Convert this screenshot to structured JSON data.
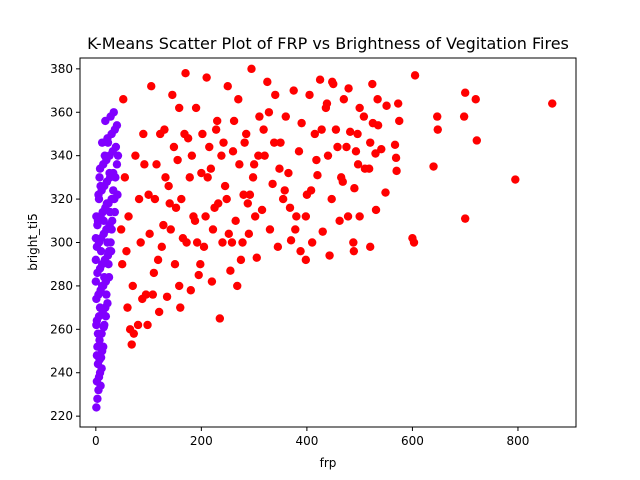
{
  "chart_data": {
    "type": "scatter",
    "title": "K-Means Scatter Plot of FRP vs Brightness of Vegitation Fires",
    "xlabel": "frp",
    "ylabel": "bright_ti5",
    "xlim": [
      -30,
      910
    ],
    "ylim": [
      215,
      385
    ],
    "x_ticks": [
      0,
      200,
      400,
      600,
      800
    ],
    "y_ticks": [
      220,
      240,
      260,
      280,
      300,
      320,
      340,
      360,
      380
    ],
    "grid": false,
    "legend": "none",
    "series": [
      {
        "color": "#8000ff",
        "points": [
          [
            1,
            224
          ],
          [
            3,
            228
          ],
          [
            5,
            232
          ],
          [
            2,
            236
          ],
          [
            6,
            238
          ],
          [
            8,
            240
          ],
          [
            4,
            244
          ],
          [
            10,
            247
          ],
          [
            12,
            250
          ],
          [
            3,
            252
          ],
          [
            7,
            255
          ],
          [
            11,
            258
          ],
          [
            15,
            261
          ],
          [
            2,
            264
          ],
          [
            6,
            266
          ],
          [
            13,
            268
          ],
          [
            18,
            270
          ],
          [
            22,
            272
          ],
          [
            1,
            274
          ],
          [
            5,
            276
          ],
          [
            9,
            278
          ],
          [
            14,
            280
          ],
          [
            19,
            282
          ],
          [
            25,
            284
          ],
          [
            3,
            286
          ],
          [
            8,
            288
          ],
          [
            12,
            290
          ],
          [
            17,
            292
          ],
          [
            23,
            294
          ],
          [
            29,
            296
          ],
          [
            2,
            298
          ],
          [
            6,
            300
          ],
          [
            10,
            302
          ],
          [
            15,
            304
          ],
          [
            20,
            306
          ],
          [
            26,
            308
          ],
          [
            4,
            310
          ],
          [
            9,
            312
          ],
          [
            13,
            314
          ],
          [
            18,
            316
          ],
          [
            24,
            318
          ],
          [
            30,
            320
          ],
          [
            5,
            322
          ],
          [
            11,
            324
          ],
          [
            16,
            326
          ],
          [
            21,
            328
          ],
          [
            27,
            330
          ],
          [
            33,
            332
          ],
          [
            8,
            334
          ],
          [
            14,
            336
          ],
          [
            20,
            338
          ],
          [
            26,
            340
          ],
          [
            32,
            342
          ],
          [
            38,
            344
          ],
          [
            12,
            346
          ],
          [
            22,
            348
          ],
          [
            30,
            350
          ],
          [
            36,
            352
          ],
          [
            40,
            354
          ],
          [
            18,
            356
          ],
          [
            28,
            358
          ],
          [
            34,
            360
          ],
          [
            0,
            282
          ],
          [
            0,
            292
          ],
          [
            0,
            302
          ],
          [
            1,
            262
          ],
          [
            1,
            312
          ],
          [
            2,
            248
          ],
          [
            4,
            258
          ],
          [
            7,
            246
          ],
          [
            9,
            234
          ],
          [
            11,
            242
          ],
          [
            14,
            252
          ],
          [
            16,
            262
          ],
          [
            20,
            276
          ],
          [
            24,
            290
          ],
          [
            28,
            300
          ],
          [
            31,
            310
          ],
          [
            35,
            320
          ],
          [
            37,
            330
          ],
          [
            40,
            336
          ],
          [
            42,
            340
          ],
          [
            10,
            296
          ],
          [
            16,
            284
          ],
          [
            22,
            300
          ],
          [
            27,
            314
          ],
          [
            33,
            324
          ],
          [
            6,
            320
          ],
          [
            3,
            308
          ],
          [
            8,
            270
          ],
          [
            19,
            266
          ],
          [
            12,
            280
          ],
          [
            25,
            296
          ],
          [
            30,
            306
          ],
          [
            36,
            314
          ],
          [
            41,
            322
          ],
          [
            15,
            310
          ],
          [
            21,
            318
          ],
          [
            9,
            326
          ],
          [
            26,
            332
          ],
          [
            17,
            340
          ],
          [
            23,
            346
          ],
          [
            7,
            330
          ]
        ]
      },
      {
        "color": "#ff0000",
        "points": [
          [
            865,
            364
          ],
          [
            795,
            329
          ],
          [
            720,
            366
          ],
          [
            700,
            369
          ],
          [
            722,
            347
          ],
          [
            698,
            358
          ],
          [
            700,
            311
          ],
          [
            647,
            358
          ],
          [
            648,
            352
          ],
          [
            640,
            335
          ],
          [
            605,
            377
          ],
          [
            600,
            302
          ],
          [
            603,
            300
          ],
          [
            573,
            364
          ],
          [
            575,
            356
          ],
          [
            567,
            345
          ],
          [
            569,
            339
          ],
          [
            570,
            333
          ],
          [
            551,
            363
          ],
          [
            549,
            323
          ],
          [
            541,
            343
          ],
          [
            534,
            366
          ],
          [
            535,
            354
          ],
          [
            531,
            315
          ],
          [
            530,
            341
          ],
          [
            525,
            355
          ],
          [
            524,
            373
          ],
          [
            520,
            298
          ],
          [
            518,
            334
          ],
          [
            508,
            358
          ],
          [
            500,
            362
          ],
          [
            497,
            336
          ],
          [
            496,
            350
          ],
          [
            493,
            342
          ],
          [
            490,
            325
          ],
          [
            489,
            296
          ],
          [
            482,
            351
          ],
          [
            479,
            371
          ],
          [
            475,
            344
          ],
          [
            470,
            366
          ],
          [
            465,
            330
          ],
          [
            462,
            310
          ],
          [
            455,
            352
          ],
          [
            450,
            373
          ],
          [
            447,
            320
          ],
          [
            443,
            294
          ],
          [
            440,
            340
          ],
          [
            436,
            362
          ],
          [
            430,
            305
          ],
          [
            425,
            375
          ],
          [
            420,
            331
          ],
          [
            415,
            350
          ],
          [
            410,
            300
          ],
          [
            405,
            368
          ],
          [
            400,
            322
          ],
          [
            398,
            292
          ],
          [
            390,
            355
          ],
          [
            385,
            342
          ],
          [
            380,
            312
          ],
          [
            375,
            370
          ],
          [
            370,
            301
          ],
          [
            365,
            332
          ],
          [
            360,
            358
          ],
          [
            355,
            320
          ],
          [
            350,
            346
          ],
          [
            345,
            298
          ],
          [
            340,
            368
          ],
          [
            335,
            327
          ],
          [
            330,
            306
          ],
          [
            325,
            374
          ],
          [
            320,
            340
          ],
          [
            315,
            315
          ],
          [
            310,
            358
          ],
          [
            305,
            293
          ],
          [
            300,
            336
          ],
          [
            295,
            380
          ],
          [
            290,
            304
          ],
          [
            285,
            350
          ],
          [
            280,
            322
          ],
          [
            275,
            292
          ],
          [
            270,
            366
          ],
          [
            265,
            310
          ],
          [
            260,
            342
          ],
          [
            255,
            287
          ],
          [
            250,
            372
          ],
          [
            245,
            326
          ],
          [
            240,
            300
          ],
          [
            235,
            265
          ],
          [
            230,
            356
          ],
          [
            225,
            316
          ],
          [
            220,
            282
          ],
          [
            215,
            344
          ],
          [
            210,
            376
          ],
          [
            205,
            298
          ],
          [
            200,
            332
          ],
          [
            195,
            285
          ],
          [
            190,
            362
          ],
          [
            185,
            312
          ],
          [
            180,
            278
          ],
          [
            175,
            348
          ],
          [
            170,
            378
          ],
          [
            165,
            302
          ],
          [
            160,
            270
          ],
          [
            155,
            338
          ],
          [
            150,
            290
          ],
          [
            145,
            368
          ],
          [
            140,
            318
          ],
          [
            135,
            275
          ],
          [
            130,
            352
          ],
          [
            125,
            298
          ],
          [
            120,
            268
          ],
          [
            115,
            336
          ],
          [
            110,
            286
          ],
          [
            105,
            372
          ],
          [
            100,
            322
          ],
          [
            95,
            276
          ],
          [
            90,
            350
          ],
          [
            85,
            300
          ],
          [
            80,
            262
          ],
          [
            75,
            340
          ],
          [
            70,
            280
          ],
          [
            65,
            260
          ],
          [
            62,
            312
          ],
          [
            60,
            270
          ],
          [
            58,
            296
          ],
          [
            55,
            330
          ],
          [
            52,
            366
          ],
          [
            50,
            290
          ],
          [
            48,
            306
          ],
          [
            68,
            253
          ],
          [
            72,
            258
          ],
          [
            88,
            274
          ],
          [
            98,
            262
          ],
          [
            108,
            276
          ],
          [
            118,
            292
          ],
          [
            128,
            308
          ],
          [
            138,
            326
          ],
          [
            148,
            344
          ],
          [
            158,
            362
          ],
          [
            168,
            350
          ],
          [
            178,
            330
          ],
          [
            188,
            310
          ],
          [
            198,
            290
          ],
          [
            208,
            312
          ],
          [
            218,
            334
          ],
          [
            228,
            352
          ],
          [
            238,
            340
          ],
          [
            248,
            320
          ],
          [
            258,
            300
          ],
          [
            268,
            280
          ],
          [
            278,
            300
          ],
          [
            288,
            318
          ],
          [
            298,
            330
          ],
          [
            308,
            340
          ],
          [
            318,
            352
          ],
          [
            328,
            360
          ],
          [
            338,
            346
          ],
          [
            348,
            334
          ],
          [
            358,
            324
          ],
          [
            368,
            316
          ],
          [
            378,
            306
          ],
          [
            388,
            296
          ],
          [
            398,
            312
          ],
          [
            408,
            324
          ],
          [
            418,
            338
          ],
          [
            428,
            352
          ],
          [
            438,
            364
          ],
          [
            448,
            374
          ],
          [
            458,
            344
          ],
          [
            468,
            328
          ],
          [
            478,
            312
          ],
          [
            488,
            300
          ],
          [
            500,
            312
          ],
          [
            510,
            334
          ],
          [
            520,
            346
          ],
          [
            158,
            280
          ],
          [
            162,
            320
          ],
          [
            172,
            300
          ],
          [
            182,
            340
          ],
          [
            192,
            300
          ],
          [
            202,
            350
          ],
          [
            212,
            330
          ],
          [
            222,
            306
          ],
          [
            232,
            318
          ],
          [
            242,
            346
          ],
          [
            252,
            304
          ],
          [
            262,
            356
          ],
          [
            272,
            336
          ],
          [
            282,
            346
          ],
          [
            292,
            322
          ],
          [
            302,
            312
          ],
          [
            122,
            350
          ],
          [
            132,
            330
          ],
          [
            142,
            306
          ],
          [
            152,
            316
          ],
          [
            102,
            304
          ],
          [
            112,
            320
          ],
          [
            82,
            320
          ],
          [
            92,
            336
          ]
        ]
      }
    ]
  }
}
